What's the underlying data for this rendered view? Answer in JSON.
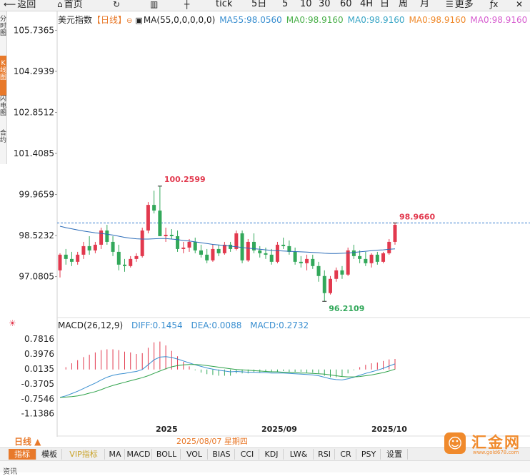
{
  "toolbar": {
    "items": [
      {
        "icon": "back-arrow-icon",
        "glyph": "⟵",
        "label": "返回"
      },
      {
        "icon": "home-icon",
        "glyph": "⌂",
        "label": "首页"
      },
      {
        "icon": "refresh-icon",
        "glyph": "↻",
        "label": ""
      },
      {
        "icon": "bar-chart-icon",
        "glyph": "▥",
        "label": ""
      },
      {
        "icon": "candlestick-icon",
        "glyph": "┼",
        "label": ""
      },
      {
        "icon": "",
        "glyph": "",
        "label": "tick"
      },
      {
        "icon": "",
        "glyph": "",
        "label": "5日"
      },
      {
        "icon": "",
        "glyph": "",
        "label": "5"
      },
      {
        "icon": "",
        "glyph": "",
        "label": "10"
      },
      {
        "icon": "",
        "glyph": "",
        "label": "30"
      },
      {
        "icon": "",
        "glyph": "",
        "label": "60"
      },
      {
        "icon": "",
        "glyph": "",
        "label": "4H"
      },
      {
        "icon": "",
        "glyph": "",
        "label": "日"
      },
      {
        "icon": "",
        "glyph": "",
        "label": "周"
      },
      {
        "icon": "",
        "glyph": "",
        "label": "月"
      },
      {
        "icon": "menu-icon",
        "glyph": "☰",
        "label": "更多"
      },
      {
        "icon": "function-icon",
        "glyph": "ƒx",
        "label": ""
      },
      {
        "icon": "close-icon",
        "glyph": "✕",
        "label": ""
      }
    ]
  },
  "side_tabs": [
    {
      "label": "分时图",
      "active": false
    },
    {
      "label": "K线图",
      "active": true
    },
    {
      "label": "闪电图",
      "active": false
    },
    {
      "label": "合约",
      "active": false
    }
  ],
  "legend": {
    "name": "美元指数",
    "period": "【日线】",
    "ma_params": "MA(55,0,0,0,0,0)",
    "ma_items": [
      {
        "text": "MA55:98.0560",
        "color": "#3a8fd0"
      },
      {
        "text": "MA0:98.9160",
        "color": "#4bb04b"
      },
      {
        "text": "MA0:98.9160",
        "color": "#3aa6c6"
      },
      {
        "text": "MA0:98.9160",
        "color": "#f08a2c"
      },
      {
        "text": "MA0:98.9160",
        "color": "#d75fd0"
      }
    ]
  },
  "macd_legend": {
    "title": "MACD(26,12,9)",
    "diff": "DIFF:0.1454",
    "dea": "DEA:0.0088",
    "macd": "MACD:0.2732"
  },
  "colors": {
    "up": "#e2394e",
    "down": "#32a85a",
    "ma55": "#2b6cb8",
    "diff": "#2ea24a",
    "dea": "#3a8fd0",
    "hline": "#3a7fd0",
    "accent": "#e8792a"
  },
  "bottom": {
    "period_label": "日线 ▲",
    "hover_date": "2025/08/07 星期四",
    "indicators": [
      "指标",
      "模板",
      "VIP指标",
      "MA",
      "MACD",
      "BOLL",
      "VOL",
      "BIAS",
      "CCI",
      "KDJ",
      "LW&",
      "RSI",
      "CR",
      "PSY",
      "设置"
    ],
    "active_indicator": "指标",
    "status_text": "资讯"
  },
  "logo": {
    "name": "汇金网",
    "url": "www.gold678.com"
  },
  "chart_data": [
    {
      "type": "candlestick",
      "title": "美元指数",
      "y_ticks": [
        105.7365,
        104.2939,
        102.8512,
        101.4085,
        99.9659,
        98.5232,
        97.0805
      ],
      "x_ticks": [
        "2025",
        "2025/09",
        "2025/10"
      ],
      "ylim": [
        95.64,
        106.4
      ],
      "current_price_line": 98.966,
      "annotations": [
        {
          "text": "100.2599",
          "value": 100.2599,
          "kind": "high"
        },
        {
          "text": "96.2109",
          "value": 96.2109,
          "kind": "low"
        },
        {
          "text": "98.9660",
          "value": 98.966,
          "kind": "last"
        }
      ],
      "candles": [
        [
          97.3,
          97.9,
          97.05,
          97.85
        ],
        [
          97.85,
          98.05,
          97.5,
          97.7
        ],
        [
          97.7,
          97.95,
          97.45,
          97.6
        ],
        [
          97.6,
          97.95,
          97.5,
          97.85
        ],
        [
          97.85,
          98.3,
          97.7,
          98.15
        ],
        [
          98.15,
          98.5,
          97.85,
          98.0
        ],
        [
          98.0,
          98.3,
          97.9,
          98.2
        ],
        [
          98.2,
          98.8,
          98.05,
          98.7
        ],
        [
          98.7,
          98.9,
          98.2,
          98.3
        ],
        [
          98.3,
          98.5,
          97.8,
          97.95
        ],
        [
          97.95,
          98.2,
          97.3,
          97.5
        ],
        [
          97.5,
          97.7,
          97.25,
          97.45
        ],
        [
          97.45,
          97.8,
          97.4,
          97.7
        ],
        [
          97.7,
          97.9,
          97.6,
          97.8
        ],
        [
          97.8,
          98.8,
          97.75,
          98.7
        ],
        [
          98.7,
          99.7,
          98.6,
          99.6
        ],
        [
          99.6,
          100.1,
          99.3,
          99.4
        ],
        [
          99.4,
          100.2599,
          98.5,
          98.5
        ],
        [
          98.5,
          98.8,
          98.3,
          98.55
        ],
        [
          98.55,
          98.75,
          98.4,
          98.5
        ],
        [
          98.5,
          98.7,
          97.95,
          98.05
        ],
        [
          98.05,
          98.3,
          97.9,
          98.1
        ],
        [
          98.1,
          98.4,
          97.95,
          98.3
        ],
        [
          98.3,
          98.45,
          97.9,
          98.0
        ],
        [
          98.0,
          98.2,
          97.75,
          97.85
        ],
        [
          97.85,
          98.05,
          97.55,
          97.65
        ],
        [
          97.65,
          98.2,
          97.6,
          98.05
        ],
        [
          98.05,
          98.2,
          97.8,
          97.9
        ],
        [
          97.9,
          98.3,
          97.85,
          98.2
        ],
        [
          98.2,
          98.3,
          97.95,
          98.05
        ],
        [
          98.05,
          98.7,
          98.0,
          98.6
        ],
        [
          98.6,
          98.7,
          97.55,
          97.65
        ],
        [
          97.65,
          98.4,
          97.6,
          98.3
        ],
        [
          98.3,
          98.6,
          97.9,
          98.0
        ],
        [
          98.0,
          98.15,
          97.75,
          97.9
        ],
        [
          97.9,
          98.1,
          97.7,
          97.85
        ],
        [
          97.85,
          98.05,
          97.5,
          97.6
        ],
        [
          97.6,
          98.3,
          97.55,
          98.2
        ],
        [
          98.2,
          98.45,
          98.05,
          98.15
        ],
        [
          98.15,
          98.35,
          97.85,
          97.95
        ],
        [
          97.95,
          98.1,
          97.5,
          97.6
        ],
        [
          97.6,
          97.8,
          97.4,
          97.55
        ],
        [
          97.55,
          97.85,
          97.3,
          97.7
        ],
        [
          97.7,
          97.85,
          97.35,
          97.45
        ],
        [
          97.45,
          97.6,
          96.9,
          97.1
        ],
        [
          97.1,
          97.3,
          96.2109,
          96.5
        ],
        [
          96.5,
          97.1,
          96.45,
          97.0
        ],
        [
          97.0,
          97.4,
          96.9,
          97.3
        ],
        [
          97.3,
          97.45,
          97.0,
          97.15
        ],
        [
          97.15,
          98.1,
          97.1,
          98.0
        ],
        [
          98.0,
          98.2,
          97.7,
          97.8
        ],
        [
          97.8,
          98.0,
          97.55,
          97.7
        ],
        [
          97.7,
          97.95,
          97.45,
          97.55
        ],
        [
          97.55,
          97.9,
          97.4,
          97.85
        ],
        [
          97.85,
          97.95,
          97.5,
          97.6
        ],
        [
          97.6,
          97.95,
          97.55,
          97.9
        ],
        [
          97.9,
          98.4,
          97.85,
          98.3
        ],
        [
          98.3,
          98.966,
          98.2,
          98.9
        ]
      ],
      "ma55": [
        98.85,
        98.8,
        98.76,
        98.72,
        98.68,
        98.65,
        98.62,
        98.6,
        98.57,
        98.54,
        98.5,
        98.46,
        98.43,
        98.41,
        98.4,
        98.4,
        98.41,
        98.42,
        98.42,
        98.4,
        98.38,
        98.35,
        98.33,
        98.3,
        98.27,
        98.24,
        98.21,
        98.19,
        98.17,
        98.15,
        98.13,
        98.1,
        98.08,
        98.06,
        98.04,
        98.02,
        98.0,
        97.99,
        97.98,
        97.97,
        97.96,
        97.95,
        97.94,
        97.93,
        97.92,
        97.9,
        97.89,
        97.89,
        97.9,
        97.91,
        97.93,
        97.95,
        97.97,
        97.99,
        98.01,
        98.02,
        98.04,
        98.056
      ]
    },
    {
      "type": "macd",
      "title": "MACD(26,12,9)",
      "y_ticks": [
        0.7816,
        0.3976,
        0.0135,
        -0.3705,
        -0.7546,
        -1.1386
      ],
      "ylim": [
        -1.42,
        0.97
      ],
      "diff": [
        -0.72,
        -0.68,
        -0.62,
        -0.56,
        -0.49,
        -0.42,
        -0.35,
        -0.27,
        -0.2,
        -0.15,
        -0.12,
        -0.1,
        -0.07,
        -0.05,
        0.0,
        0.12,
        0.25,
        0.32,
        0.33,
        0.31,
        0.27,
        0.22,
        0.17,
        0.12,
        0.08,
        0.04,
        0.01,
        -0.02,
        -0.04,
        -0.06,
        -0.05,
        -0.06,
        -0.07,
        -0.07,
        -0.08,
        -0.08,
        -0.09,
        -0.09,
        -0.09,
        -0.1,
        -0.11,
        -0.12,
        -0.13,
        -0.14,
        -0.16,
        -0.2,
        -0.24,
        -0.26,
        -0.27,
        -0.24,
        -0.2,
        -0.15,
        -0.1,
        -0.06,
        -0.02,
        0.03,
        0.09,
        0.145
      ],
      "dea": [
        -0.72,
        -0.71,
        -0.7,
        -0.68,
        -0.65,
        -0.61,
        -0.57,
        -0.52,
        -0.46,
        -0.41,
        -0.37,
        -0.33,
        -0.29,
        -0.25,
        -0.21,
        -0.16,
        -0.1,
        -0.04,
        0.02,
        0.07,
        0.1,
        0.12,
        0.13,
        0.13,
        0.12,
        0.1,
        0.08,
        0.06,
        0.04,
        0.02,
        0.0,
        -0.01,
        -0.02,
        -0.03,
        -0.04,
        -0.05,
        -0.06,
        -0.06,
        -0.07,
        -0.07,
        -0.08,
        -0.09,
        -0.09,
        -0.1,
        -0.11,
        -0.12,
        -0.14,
        -0.16,
        -0.18,
        -0.19,
        -0.19,
        -0.18,
        -0.16,
        -0.14,
        -0.11,
        -0.08,
        -0.04,
        0.009
      ]
    }
  ]
}
